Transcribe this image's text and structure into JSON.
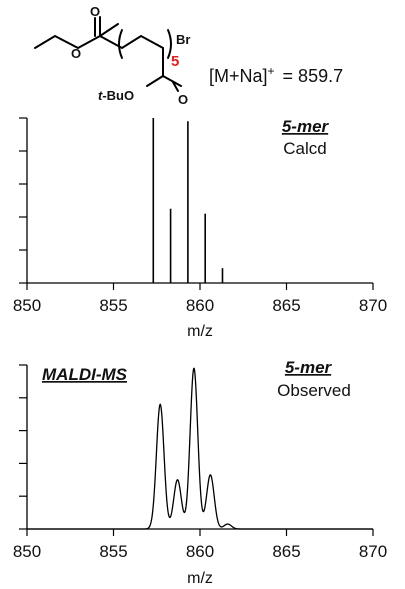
{
  "header": {
    "molecule": {
      "atom_o_top": "O",
      "atom_o_ester": "O",
      "atom_o_bottom": "O",
      "tbu_prefix": "t",
      "tbu_suffix": "-BuO",
      "end_group": "Br",
      "repeat_count": "5",
      "repeat_color": "#e02020"
    },
    "ion": "[M+Na]",
    "ion_charge": "+",
    "ion_value": "= 859.7"
  },
  "chart_data": [
    {
      "type": "bar",
      "annotation_title": "5-mer",
      "annotation_sub": "Calcd",
      "xlabel": "m/z",
      "xlim": [
        850,
        870
      ],
      "xticks": [
        850,
        855,
        860,
        865,
        870
      ],
      "ylim": [
        0,
        1
      ],
      "x": [
        857.3,
        858.3,
        859.3,
        860.3,
        861.3
      ],
      "values": [
        1.0,
        0.45,
        0.98,
        0.42,
        0.09
      ]
    },
    {
      "type": "line",
      "label": "MALDI-MS",
      "annotation_title": "5-mer",
      "annotation_sub": "Observed",
      "xlabel": "m/z",
      "xlim": [
        850,
        870
      ],
      "xticks": [
        850,
        855,
        860,
        865,
        870
      ],
      "ylim": [
        0,
        1
      ],
      "peaks": [
        {
          "x": 857.7,
          "y": 0.76
        },
        {
          "x": 858.7,
          "y": 0.3
        },
        {
          "x": 859.65,
          "y": 0.98
        },
        {
          "x": 860.6,
          "y": 0.33
        },
        {
          "x": 861.6,
          "y": 0.03
        }
      ]
    }
  ]
}
